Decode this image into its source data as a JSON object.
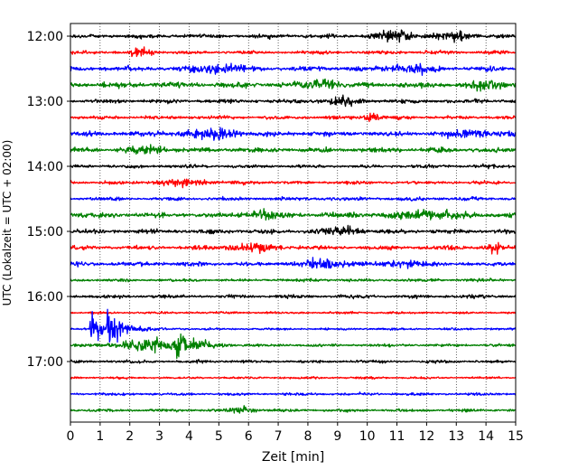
{
  "chart_data": {
    "type": "line",
    "title": "",
    "xlabel": "Zeit  [min]",
    "ylabel": "UTC (Lokalzeit = UTC + 02:00)",
    "xlim": [
      0,
      15
    ],
    "x_ticks": [
      0,
      1,
      2,
      3,
      4,
      5,
      6,
      7,
      8,
      9,
      10,
      11,
      12,
      13,
      14,
      15
    ],
    "x_tick_labels": [
      "0",
      "1",
      "2",
      "3",
      "4",
      "5",
      "6",
      "7",
      "8",
      "9",
      "10",
      "11",
      "12",
      "13",
      "14",
      "15"
    ],
    "y_tick_labels": [
      "12:00",
      "13:00",
      "14:00",
      "15:00",
      "16:00",
      "17:00"
    ],
    "y_tick_rows": [
      0,
      4,
      8,
      12,
      16,
      20
    ],
    "grid": {
      "x": true,
      "y": false,
      "style": "dotted"
    },
    "trace_interval_min": 15,
    "colors": [
      "#000000",
      "#ff0000",
      "#0000ff",
      "#008000"
    ],
    "traces": [
      {
        "start": "12:00",
        "color": "#000000",
        "amplitude": 2.2,
        "events": [
          {
            "t": 11.0,
            "amp": 4.5,
            "width": 0.5
          },
          {
            "t": 13.0,
            "amp": 3.5,
            "width": 0.4
          }
        ]
      },
      {
        "start": "12:15",
        "color": "#ff0000",
        "amplitude": 1.8,
        "events": [
          {
            "t": 2.4,
            "amp": 3.0,
            "width": 0.3
          }
        ]
      },
      {
        "start": "12:30",
        "color": "#0000ff",
        "amplitude": 2.5,
        "events": [
          {
            "t": 5.0,
            "amp": 3.5,
            "width": 0.6
          },
          {
            "t": 11.5,
            "amp": 3.5,
            "width": 0.5
          }
        ]
      },
      {
        "start": "12:45",
        "color": "#008000",
        "amplitude": 2.8,
        "events": [
          {
            "t": 8.5,
            "amp": 4.5,
            "width": 0.4
          },
          {
            "t": 14.0,
            "amp": 3.5,
            "width": 0.5
          }
        ]
      },
      {
        "start": "13:00",
        "color": "#000000",
        "amplitude": 2.2,
        "events": [
          {
            "t": 9.0,
            "amp": 3.5,
            "width": 0.4
          }
        ]
      },
      {
        "start": "13:15",
        "color": "#ff0000",
        "amplitude": 1.8,
        "events": [
          {
            "t": 10.2,
            "amp": 4.5,
            "width": 0.2
          }
        ]
      },
      {
        "start": "13:30",
        "color": "#0000ff",
        "amplitude": 2.5,
        "events": [
          {
            "t": 4.8,
            "amp": 4.0,
            "width": 0.7
          },
          {
            "t": 13.5,
            "amp": 3.5,
            "width": 0.5
          }
        ]
      },
      {
        "start": "13:45",
        "color": "#008000",
        "amplitude": 2.5,
        "events": [
          {
            "t": 2.6,
            "amp": 3.5,
            "width": 0.4
          }
        ]
      },
      {
        "start": "14:00",
        "color": "#000000",
        "amplitude": 1.8,
        "events": []
      },
      {
        "start": "14:15",
        "color": "#ff0000",
        "amplitude": 1.8,
        "events": [
          {
            "t": 3.8,
            "amp": 3.0,
            "width": 0.6
          }
        ]
      },
      {
        "start": "14:30",
        "color": "#0000ff",
        "amplitude": 1.8,
        "events": []
      },
      {
        "start": "14:45",
        "color": "#008000",
        "amplitude": 2.8,
        "events": [
          {
            "t": 6.5,
            "amp": 4.5,
            "width": 0.3
          },
          {
            "t": 12.0,
            "amp": 3.5,
            "width": 0.8
          }
        ]
      },
      {
        "start": "15:00",
        "color": "#000000",
        "amplitude": 2.2,
        "events": [
          {
            "t": 9.0,
            "amp": 3.5,
            "width": 0.6
          }
        ]
      },
      {
        "start": "15:15",
        "color": "#ff0000",
        "amplitude": 2.2,
        "events": [
          {
            "t": 14.3,
            "amp": 5.0,
            "width": 0.15
          },
          {
            "t": 6.0,
            "amp": 3.0,
            "width": 0.6
          }
        ]
      },
      {
        "start": "15:30",
        "color": "#0000ff",
        "amplitude": 2.3,
        "events": [
          {
            "t": 8.5,
            "amp": 3.5,
            "width": 0.6
          },
          {
            "t": 11.3,
            "amp": 3.5,
            "width": 0.3
          }
        ]
      },
      {
        "start": "15:45",
        "color": "#008000",
        "amplitude": 1.6,
        "events": []
      },
      {
        "start": "16:00",
        "color": "#000000",
        "amplitude": 1.8,
        "events": []
      },
      {
        "start": "16:15",
        "color": "#ff0000",
        "amplitude": 1.2,
        "events": []
      },
      {
        "start": "16:30",
        "color": "#0000ff",
        "amplitude": 1.2,
        "events": [
          {
            "t": 0.7,
            "amp": 18.0,
            "width": 0.2,
            "decay": 0.3
          },
          {
            "t": 1.25,
            "amp": 16.0,
            "width": 0.2,
            "decay": 0.5
          }
        ]
      },
      {
        "start": "16:45",
        "color": "#008000",
        "amplitude": 1.5,
        "events": [
          {
            "t": 2.7,
            "amp": 5.0,
            "width": 0.8
          },
          {
            "t": 3.6,
            "amp": 12.0,
            "width": 0.4,
            "decay": 0.5
          }
        ]
      },
      {
        "start": "17:00",
        "color": "#000000",
        "amplitude": 1.5,
        "events": []
      },
      {
        "start": "17:15",
        "color": "#ff0000",
        "amplitude": 1.2,
        "events": []
      },
      {
        "start": "17:30",
        "color": "#0000ff",
        "amplitude": 1.4,
        "events": []
      },
      {
        "start": "17:45",
        "color": "#008000",
        "amplitude": 1.5,
        "events": [
          {
            "t": 5.8,
            "amp": 3.0,
            "width": 0.3
          }
        ]
      }
    ]
  }
}
